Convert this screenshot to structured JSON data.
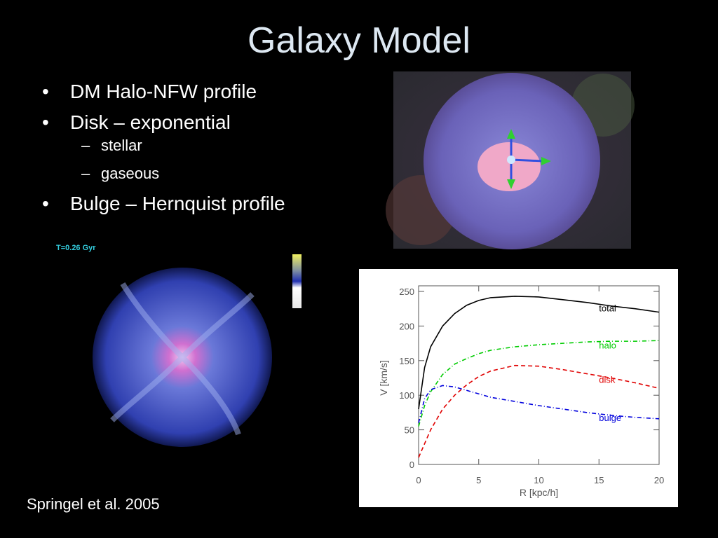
{
  "title": "Galaxy Model",
  "bullets": [
    {
      "text": "DM Halo-NFW profile"
    },
    {
      "text": "Disk – exponential",
      "sub": [
        "stellar",
        "gaseous"
      ]
    },
    {
      "text": "Bulge – Hernquist profile"
    }
  ],
  "sim_label": "T=0.26 Gyr",
  "citation": "Springel et al. 2005",
  "chart_data": {
    "type": "line",
    "x_label": "R [kpc/h]",
    "y_label": "V [km/s]",
    "x": [
      0,
      0.5,
      1,
      2,
      3,
      4,
      5,
      6,
      8,
      10,
      12,
      14,
      16,
      18,
      20
    ],
    "series": [
      {
        "name": "total",
        "color": "#000000",
        "style": "solid",
        "values": [
          80,
          140,
          170,
          200,
          218,
          230,
          237,
          241,
          243,
          242,
          238,
          234,
          229,
          225,
          220
        ]
      },
      {
        "name": "halo",
        "color": "#00cc00",
        "style": "dashdot",
        "values": [
          55,
          85,
          105,
          130,
          145,
          153,
          160,
          165,
          170,
          173,
          175,
          177,
          178,
          178,
          179
        ]
      },
      {
        "name": "disk",
        "color": "#e00000",
        "style": "dashed",
        "values": [
          10,
          30,
          50,
          80,
          100,
          115,
          127,
          135,
          143,
          142,
          137,
          131,
          125,
          118,
          110
        ]
      },
      {
        "name": "bulge",
        "color": "#0000dd",
        "style": "dashdot",
        "values": [
          60,
          95,
          108,
          114,
          112,
          107,
          102,
          97,
          91,
          85,
          80,
          75,
          71,
          68,
          66
        ]
      }
    ],
    "xlim": [
      0,
      20
    ],
    "xticks": [
      0,
      5,
      10,
      15,
      20
    ],
    "ylim": [
      0,
      250
    ],
    "yticks": [
      0,
      50,
      100,
      150,
      200,
      250
    ]
  }
}
